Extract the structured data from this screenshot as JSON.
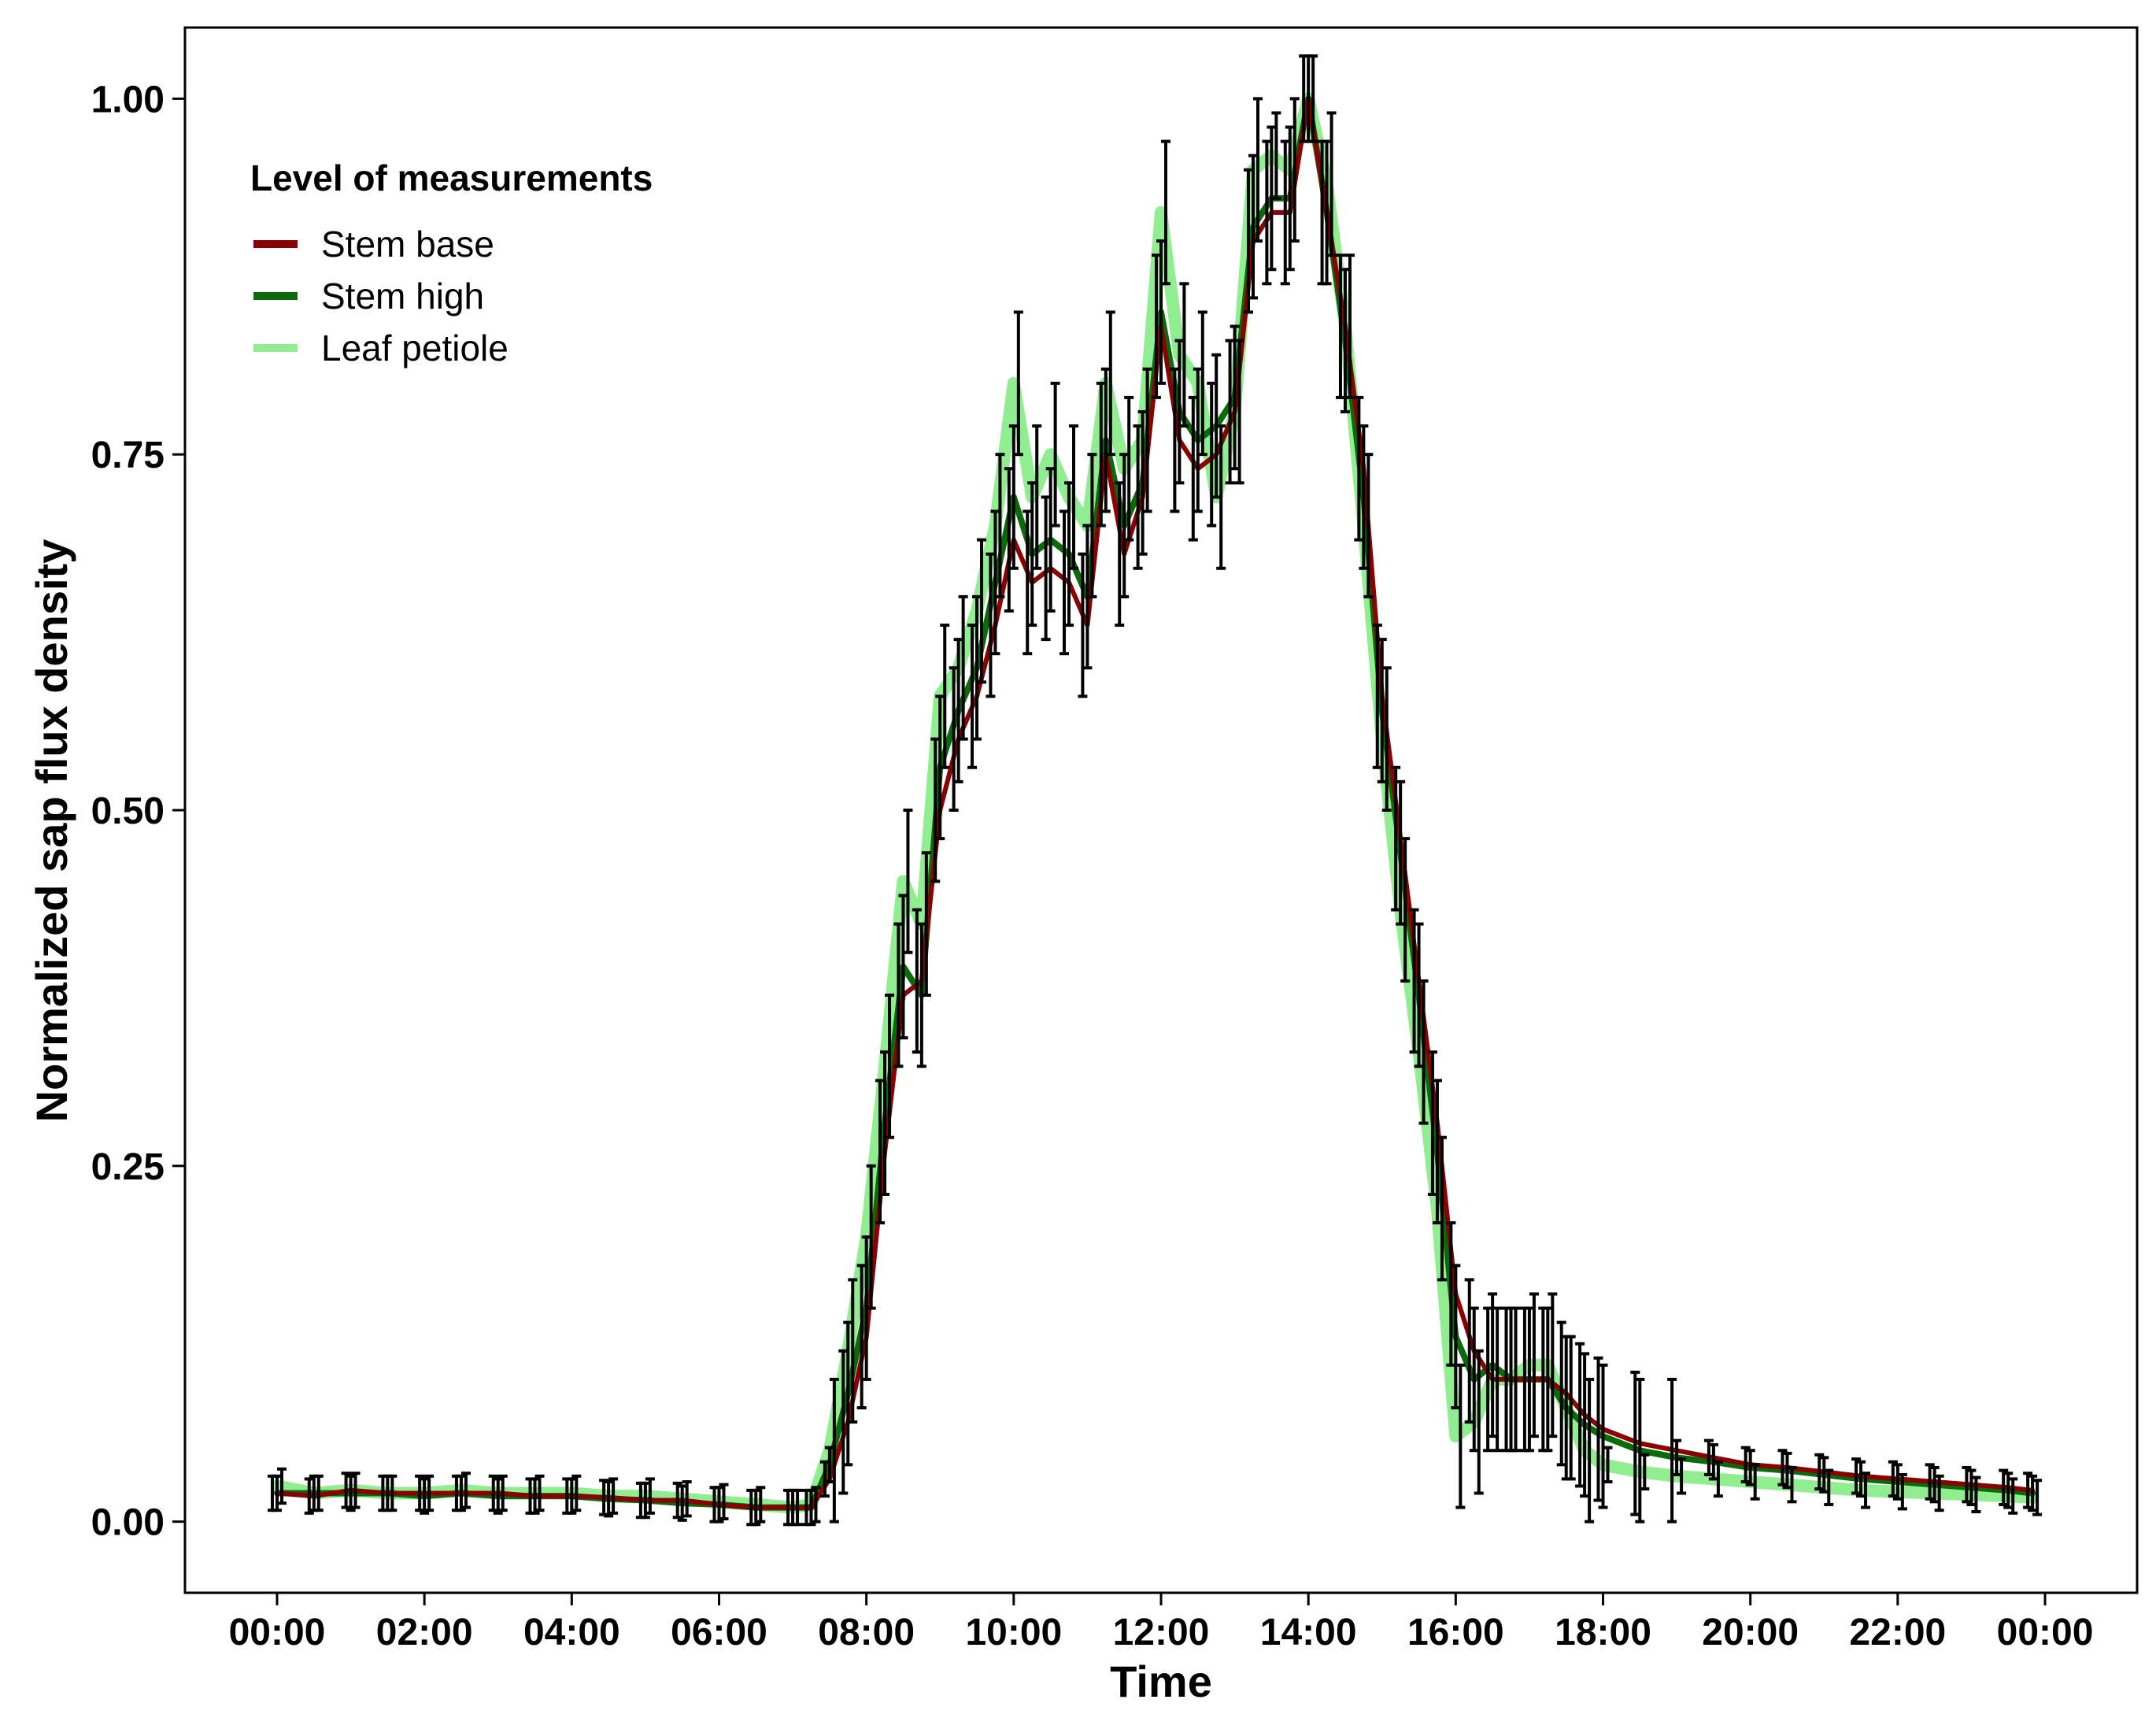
{
  "chart_data": {
    "type": "line",
    "title": "",
    "xlabel": "Time",
    "ylabel": "Normalized sap flux density",
    "ylim": [
      -0.05,
      1.05
    ],
    "xlim_hours": [
      -1.25,
      25.25
    ],
    "yticks": [
      0.0,
      0.25,
      0.5,
      0.75,
      1.0
    ],
    "ytick_labels": [
      "0.00",
      "0.25",
      "0.50",
      "0.75",
      "1.00"
    ],
    "xticks_hours": [
      0,
      2,
      4,
      6,
      8,
      10,
      12,
      14,
      16,
      18,
      20,
      22,
      24
    ],
    "xtick_labels": [
      "00:00",
      "02:00",
      "04:00",
      "06:00",
      "08:00",
      "10:00",
      "12:00",
      "14:00",
      "16:00",
      "18:00",
      "20:00",
      "22:00",
      "00:00"
    ],
    "grid": false,
    "legend_title": "Level of measurements",
    "legend_placement": "top-left",
    "x_hours": [
      0,
      0.5,
      1,
      1.5,
      2,
      2.5,
      3,
      3.5,
      4,
      4.5,
      5,
      5.5,
      6,
      6.5,
      7,
      7.25,
      7.5,
      7.75,
      8,
      8.25,
      8.5,
      8.75,
      9,
      9.25,
      9.5,
      9.75,
      10,
      10.25,
      10.5,
      10.75,
      11,
      11.25,
      11.5,
      11.75,
      12,
      12.25,
      12.5,
      12.75,
      13,
      13.25,
      13.5,
      13.75,
      14,
      14.25,
      14.5,
      14.75,
      15,
      15.25,
      15.5,
      15.75,
      16,
      16.25,
      16.5,
      16.75,
      17,
      17.25,
      17.5,
      17.75,
      18,
      18.5,
      19,
      19.5,
      20,
      20.5,
      21,
      21.5,
      22,
      22.5,
      23,
      23.5,
      23.83
    ],
    "series": [
      {
        "name": "Stem base",
        "color": "#8b0000",
        "values": [
          0.02,
          0.018,
          0.022,
          0.02,
          0.02,
          0.02,
          0.02,
          0.018,
          0.018,
          0.017,
          0.015,
          0.015,
          0.012,
          0.01,
          0.01,
          0.01,
          0.03,
          0.07,
          0.13,
          0.26,
          0.37,
          0.38,
          0.5,
          0.55,
          0.58,
          0.63,
          0.69,
          0.66,
          0.67,
          0.66,
          0.63,
          0.75,
          0.68,
          0.72,
          0.84,
          0.76,
          0.74,
          0.75,
          0.78,
          0.9,
          0.92,
          0.92,
          1.0,
          0.92,
          0.84,
          0.74,
          0.58,
          0.48,
          0.38,
          0.28,
          0.16,
          0.12,
          0.1,
          0.1,
          0.1,
          0.1,
          0.09,
          0.075,
          0.065,
          0.055,
          0.05,
          0.045,
          0.04,
          0.038,
          0.035,
          0.032,
          0.03,
          0.028,
          0.026,
          0.024,
          0.022
        ]
      },
      {
        "name": "Stem high",
        "color": "#0a6b0a",
        "values": [
          0.02,
          0.02,
          0.02,
          0.02,
          0.018,
          0.02,
          0.018,
          0.018,
          0.018,
          0.016,
          0.015,
          0.013,
          0.012,
          0.01,
          0.01,
          0.01,
          0.04,
          0.09,
          0.15,
          0.28,
          0.39,
          0.37,
          0.53,
          0.57,
          0.6,
          0.66,
          0.72,
          0.68,
          0.69,
          0.68,
          0.65,
          0.76,
          0.7,
          0.73,
          0.85,
          0.78,
          0.76,
          0.77,
          0.79,
          0.91,
          0.93,
          0.93,
          1.0,
          0.92,
          0.83,
          0.72,
          0.57,
          0.47,
          0.37,
          0.26,
          0.13,
          0.1,
          0.11,
          0.1,
          0.1,
          0.1,
          0.08,
          0.068,
          0.06,
          0.05,
          0.045,
          0.042,
          0.038,
          0.036,
          0.033,
          0.03,
          0.028,
          0.026,
          0.024,
          0.022,
          0.02
        ]
      },
      {
        "name": "Leaf petiole",
        "color": "#90ee90",
        "values": [
          0.025,
          0.02,
          0.022,
          0.02,
          0.02,
          0.022,
          0.02,
          0.02,
          0.02,
          0.018,
          0.018,
          0.016,
          0.014,
          0.012,
          0.01,
          0.012,
          0.05,
          0.12,
          0.2,
          0.32,
          0.45,
          0.42,
          0.58,
          0.6,
          0.64,
          0.7,
          0.8,
          0.72,
          0.75,
          0.72,
          0.7,
          0.8,
          0.74,
          0.76,
          0.92,
          0.82,
          0.8,
          0.72,
          0.78,
          0.95,
          0.96,
          0.95,
          1.0,
          0.94,
          0.84,
          0.7,
          0.55,
          0.43,
          0.33,
          0.22,
          0.06,
          0.07,
          0.1,
          0.1,
          0.11,
          0.11,
          0.08,
          0.05,
          0.04,
          0.035,
          0.032,
          0.03,
          0.028,
          0.026,
          0.024,
          0.022,
          0.021,
          0.02,
          0.019,
          0.018,
          0.017
        ]
      }
    ]
  }
}
